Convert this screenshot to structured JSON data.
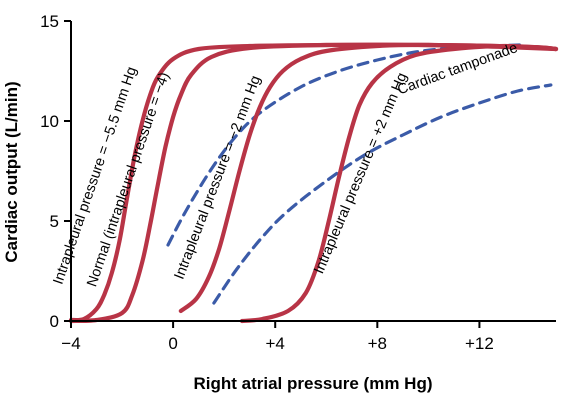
{
  "chart_data": {
    "type": "line",
    "title": "",
    "xlabel": "Right atrial pressure (mm Hg)",
    "ylabel": "Cardiac output (L/min)",
    "xlim": [
      -4,
      15
    ],
    "ylim": [
      0,
      15
    ],
    "x_ticks": [
      -4,
      0,
      4,
      8,
      12
    ],
    "x_tick_labels": [
      "−4",
      "0",
      "+4",
      "+8",
      "+12"
    ],
    "y_ticks": [
      0,
      5,
      10,
      15
    ],
    "y_tick_labels": [
      "0",
      "5",
      "10",
      "15"
    ],
    "grid": false,
    "legend": "none",
    "colors": {
      "solid": "#b83446",
      "dashed": "#3b5ba8",
      "axis": "#000000"
    },
    "series": [
      {
        "name": "Intrapleural pressure = −5.5 mm Hg",
        "style": "solid",
        "x": [
          -4.0,
          -3.5,
          -3.0,
          -2.7,
          -2.4,
          -2.1,
          -1.8,
          -1.5,
          -1.2,
          -0.9,
          -0.6,
          0.0,
          1.0,
          3.0,
          6.0,
          10.0,
          14.0,
          15.0
        ],
        "y": [
          0.05,
          0.1,
          0.6,
          1.3,
          2.4,
          4.0,
          6.2,
          8.3,
          10.0,
          11.3,
          12.2,
          13.1,
          13.6,
          13.75,
          13.8,
          13.8,
          13.7,
          13.6
        ]
      },
      {
        "name": "Normal (intrapleural pressure = −4)",
        "style": "solid",
        "x": [
          -4.0,
          -3.0,
          -2.0,
          -1.6,
          -1.2,
          -0.9,
          -0.6,
          -0.3,
          0.0,
          0.3,
          0.7,
          1.5,
          3.0,
          6.0,
          10.0,
          14.0,
          15.0
        ],
        "y": [
          0.0,
          0.05,
          0.4,
          1.3,
          3.0,
          4.8,
          6.8,
          8.7,
          10.2,
          11.3,
          12.3,
          13.2,
          13.65,
          13.8,
          13.8,
          13.7,
          13.6
        ]
      },
      {
        "name": "Intrapleural pressure = −2 mm Hg",
        "style": "solid",
        "x": [
          0.3,
          0.9,
          1.4,
          1.8,
          2.2,
          2.6,
          3.0,
          3.4,
          3.8,
          4.3,
          5.0,
          6.0,
          8.0,
          10.0,
          13.0,
          15.0
        ],
        "y": [
          0.5,
          1.1,
          2.2,
          3.6,
          5.5,
          7.5,
          9.3,
          10.7,
          11.7,
          12.5,
          13.1,
          13.5,
          13.75,
          13.8,
          13.7,
          13.6
        ]
      },
      {
        "name": "Intrapleural pressure = +2 mm Hg",
        "style": "solid",
        "x": [
          2.7,
          3.5,
          4.5,
          5.2,
          5.7,
          6.1,
          6.5,
          6.9,
          7.3,
          7.8,
          8.5,
          9.5,
          11.0,
          13.0,
          15.0
        ],
        "y": [
          0.0,
          0.1,
          0.5,
          1.4,
          3.0,
          5.0,
          7.2,
          9.2,
          10.8,
          11.9,
          12.7,
          13.3,
          13.6,
          13.75,
          13.6
        ]
      },
      {
        "name": "",
        "style": "dashed",
        "x": [
          -0.2,
          0.5,
          1.5,
          2.5,
          3.5,
          5.0,
          6.5,
          8.0,
          9.5,
          11.0,
          12.5,
          13.6
        ],
        "y": [
          3.8,
          5.5,
          7.6,
          9.3,
          10.5,
          11.7,
          12.5,
          13.05,
          13.45,
          13.65,
          13.75,
          13.8
        ]
      },
      {
        "name": "Cardiac tamponade",
        "style": "dashed",
        "x": [
          1.6,
          2.5,
          3.5,
          4.5,
          6.0,
          7.5,
          9.0,
          10.5,
          12.0,
          13.5,
          14.8
        ],
        "y": [
          0.9,
          2.6,
          4.2,
          5.5,
          7.0,
          8.3,
          9.3,
          10.2,
          10.9,
          11.5,
          11.8
        ]
      }
    ],
    "annotations": [
      {
        "text": "Intrapleural pressure = −5.5 mm Hg",
        "at": [
          -2.9,
          7.2
        ],
        "angle": -71
      },
      {
        "text": "Normal (intrapleural pressure = −4)",
        "at": [
          -1.6,
          7.0
        ],
        "angle": -71
      },
      {
        "text": "Intrapleural pressure = −2 mm Hg",
        "at": [
          1.9,
          7.1
        ],
        "angle": -69
      },
      {
        "text": "Intrapleural pressure = +2 mm Hg",
        "at": [
          7.5,
          7.3
        ],
        "angle": -67
      },
      {
        "text": "Cardiac tamponade",
        "at": [
          11.2,
          12.4
        ],
        "angle": -20
      }
    ]
  }
}
